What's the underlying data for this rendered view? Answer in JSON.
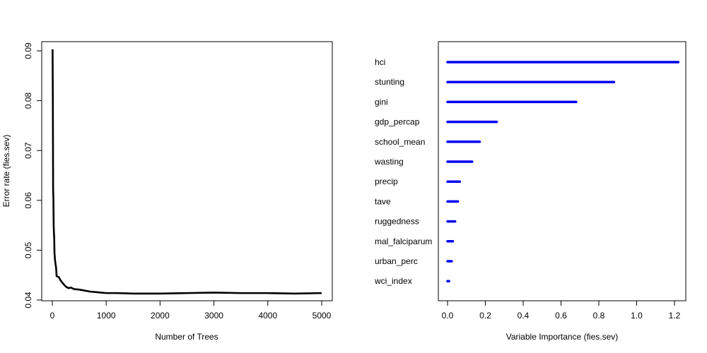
{
  "chart_data": [
    {
      "type": "line",
      "title": "",
      "xlabel": "Number of Trees",
      "ylabel": "Error rate (fies.sev)",
      "xlim": [
        0,
        5000
      ],
      "ylim": [
        0.04,
        0.09
      ],
      "x_ticks": [
        0,
        1000,
        2000,
        3000,
        4000,
        5000
      ],
      "y_ticks": [
        0.04,
        0.05,
        0.06,
        0.07,
        0.08,
        0.09
      ],
      "x_tick_labels": [
        "0",
        "1000",
        "2000",
        "3000",
        "4000",
        "5000"
      ],
      "y_tick_labels": [
        "0.04",
        "0.05",
        "0.06",
        "0.07",
        "0.08",
        "0.09"
      ],
      "grid": false,
      "series": [
        {
          "name": "error",
          "x": [
            1,
            5,
            10,
            15,
            20,
            25,
            30,
            35,
            40,
            50,
            60,
            70,
            80,
            100,
            120,
            150,
            200,
            250,
            300,
            350,
            400,
            500,
            600,
            700,
            800,
            1000,
            1200,
            1500,
            2000,
            2500,
            3000,
            3500,
            4000,
            4500,
            5000
          ],
          "y": [
            0.0903,
            0.0901,
            0.0795,
            0.062,
            0.0605,
            0.055,
            0.0535,
            0.0525,
            0.0495,
            0.048,
            0.0472,
            0.0465,
            0.0448,
            0.0447,
            0.0446,
            0.044,
            0.0433,
            0.0427,
            0.0424,
            0.0425,
            0.0422,
            0.0421,
            0.0419,
            0.0417,
            0.0416,
            0.0414,
            0.0414,
            0.0413,
            0.0413,
            0.0414,
            0.0415,
            0.0414,
            0.0414,
            0.0413,
            0.0414
          ]
        }
      ]
    },
    {
      "type": "bar",
      "orientation": "horizontal",
      "title": "",
      "xlabel": "Variable Importance (fies.sev)",
      "ylabel": "",
      "xlim": [
        0,
        1.2
      ],
      "x_ticks": [
        0.0,
        0.2,
        0.4,
        0.6,
        0.8,
        1.0,
        1.2
      ],
      "x_tick_labels": [
        "0.0",
        "0.2",
        "0.4",
        "0.6",
        "0.8",
        "1.0",
        "1.2"
      ],
      "grid": false,
      "bar_color": "#0000ee",
      "categories": [
        "hci",
        "stunting",
        "gini",
        "gdp_percap",
        "school_mean",
        "wasting",
        "precip",
        "tave",
        "ruggedness",
        "mal_falciparum",
        "urban_perc",
        "wci_index"
      ],
      "values": [
        1.22,
        0.88,
        0.68,
        0.26,
        0.17,
        0.13,
        0.065,
        0.055,
        0.04,
        0.028,
        0.022,
        0.008
      ]
    }
  ]
}
